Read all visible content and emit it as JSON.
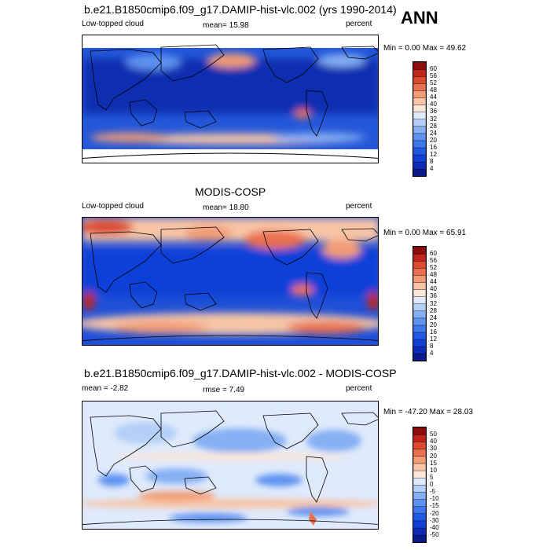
{
  "season": "ANN",
  "panels": [
    {
      "title": "b.e21.B1850cmip6.f09_g17.DAMIP-hist-vlc.002 (yrs 1990-2014)",
      "left_label": "Low-topped cloud",
      "center_label": "mean=  15.98",
      "right_label": "percent",
      "minmax": "Min =   0.00 Max =   49.62"
    },
    {
      "title": "MODIS-COSP",
      "left_label": "Low-topped cloud",
      "center_label": "mean=  18.80",
      "right_label": "percent",
      "minmax": "Min =   0.00 Max =   65.91"
    },
    {
      "title": "b.e21.B1850cmip6.f09_g17.DAMIP-hist-vlc.002 - MODIS-COSP",
      "left_label": "mean =  -2.82",
      "center_label": "rmse =   7.49",
      "right_label": "percent",
      "minmax": "Min = -47.20 Max =  28.03"
    }
  ],
  "chart_data": [
    {
      "type": "heatmap",
      "colorbar_ticks": [
        "60",
        "56",
        "52",
        "48",
        "44",
        "40",
        "36",
        "32",
        "28",
        "24",
        "20",
        "16",
        "12",
        "8",
        "4"
      ],
      "colors": [
        "#0a1a8a",
        "#0c2ab8",
        "#1140d8",
        "#1f5ae6",
        "#3d77ec",
        "#5e93f0",
        "#86b0f4",
        "#b4cff8",
        "#dfeafc",
        "#fbe6d8",
        "#f7c4a6",
        "#f29c76",
        "#ea7150",
        "#dc4a30",
        "#c2261a",
        "#8e0c0c"
      ]
    },
    {
      "type": "heatmap",
      "colorbar_ticks": [
        "60",
        "56",
        "52",
        "48",
        "44",
        "40",
        "36",
        "32",
        "28",
        "24",
        "20",
        "16",
        "12",
        "8",
        "4"
      ],
      "colors": [
        "#0a1a8a",
        "#0c2ab8",
        "#1140d8",
        "#1f5ae6",
        "#3d77ec",
        "#5e93f0",
        "#86b0f4",
        "#b4cff8",
        "#dfeafc",
        "#fbe6d8",
        "#f7c4a6",
        "#f29c76",
        "#ea7150",
        "#dc4a30",
        "#c2261a",
        "#8e0c0c"
      ]
    },
    {
      "type": "heatmap",
      "colorbar_ticks": [
        "50",
        "40",
        "30",
        "20",
        "15",
        "10",
        "5",
        "0",
        "-5",
        "-10",
        "-15",
        "-20",
        "-30",
        "-40",
        "-50"
      ],
      "colors": [
        "#0a1a8a",
        "#0c2ab8",
        "#1140d8",
        "#1f5ae6",
        "#3d77ec",
        "#5e93f0",
        "#86b0f4",
        "#b4cff8",
        "#dfeafc",
        "#fbe6d8",
        "#f7c4a6",
        "#f29c76",
        "#ea7150",
        "#dc4a30",
        "#c2261a",
        "#8e0c0c"
      ]
    }
  ]
}
